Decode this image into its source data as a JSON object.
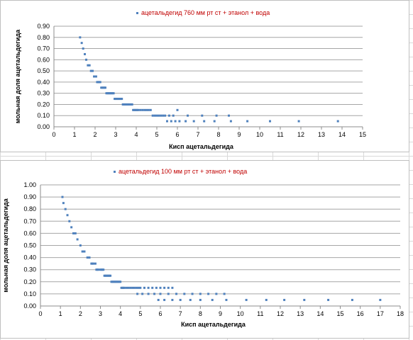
{
  "chart_data": [
    {
      "type": "scatter",
      "legend": "ацетальдегид 760 мм рт ст + этанол + вода",
      "legend_position": "top",
      "xlabel": "Кисп ацетальдегида",
      "ylabel": "мольная  доля ацетальдегида",
      "xlim": [
        0,
        15
      ],
      "ylim": [
        0,
        0.9
      ],
      "x_ticks": [
        "0",
        "1",
        "2",
        "3",
        "4",
        "5",
        "6",
        "7",
        "8",
        "9",
        "10",
        "11",
        "12",
        "13",
        "14",
        "15"
      ],
      "y_ticks": [
        "0.00",
        "0.10",
        "0.20",
        "0.30",
        "0.40",
        "0.50",
        "0.60",
        "0.70",
        "0.80",
        "0.90"
      ],
      "grid": "horizontal",
      "marker_color": "#4f81bd",
      "series": [
        {
          "x": [
            1.27,
            1.35,
            1.42,
            1.5,
            1.57,
            1.65,
            1.73,
            1.8,
            1.88,
            1.95,
            2.0,
            2.05,
            2.1,
            2.15,
            2.2,
            2.25,
            2.3,
            2.35,
            2.4,
            2.45,
            2.5,
            2.55,
            2.6,
            2.65,
            2.7,
            2.75,
            2.8,
            2.85,
            2.9,
            2.95,
            3.0,
            3.05,
            3.1,
            3.15,
            3.2,
            3.25,
            3.3,
            3.35,
            3.4,
            3.45,
            3.5,
            3.55,
            3.6,
            3.65,
            3.7,
            3.75,
            3.8,
            3.85,
            3.9,
            3.95,
            4.0,
            4.05,
            4.1,
            4.2,
            4.3,
            4.4,
            4.5,
            4.6,
            4.7,
            4.8,
            4.9,
            5.0,
            5.1,
            5.2,
            5.3,
            5.4,
            5.6,
            5.8,
            6.0,
            6.5,
            7.2,
            7.9,
            8.5,
            5.5,
            5.7,
            5.9,
            6.1,
            6.4,
            6.8,
            7.3,
            7.8,
            8.6,
            9.4,
            10.5,
            11.9,
            13.8
          ],
          "y": [
            0.8,
            0.75,
            0.7,
            0.65,
            0.6,
            0.55,
            0.55,
            0.5,
            0.5,
            0.45,
            0.45,
            0.45,
            0.4,
            0.4,
            0.4,
            0.4,
            0.35,
            0.35,
            0.35,
            0.35,
            0.35,
            0.3,
            0.3,
            0.3,
            0.3,
            0.3,
            0.3,
            0.3,
            0.3,
            0.25,
            0.25,
            0.25,
            0.25,
            0.25,
            0.25,
            0.25,
            0.25,
            0.2,
            0.2,
            0.2,
            0.2,
            0.2,
            0.2,
            0.2,
            0.2,
            0.2,
            0.2,
            0.15,
            0.15,
            0.15,
            0.15,
            0.15,
            0.15,
            0.15,
            0.15,
            0.15,
            0.15,
            0.15,
            0.15,
            0.1,
            0.1,
            0.1,
            0.1,
            0.1,
            0.1,
            0.1,
            0.1,
            0.1,
            0.15,
            0.1,
            0.1,
            0.1,
            0.1,
            0.05,
            0.05,
            0.05,
            0.05,
            0.05,
            0.05,
            0.05,
            0.05,
            0.05,
            0.05,
            0.05,
            0.05,
            0.05
          ]
        }
      ]
    },
    {
      "type": "scatter",
      "legend": "ацетальдегид 100 мм рт ст + этанол + вода",
      "legend_position": "top",
      "xlabel": "Кисп ацетальдегида",
      "ylabel": "мольная  доля ацетальдегида",
      "xlim": [
        0,
        18
      ],
      "ylim": [
        0,
        1.0
      ],
      "x_ticks": [
        "0",
        "1",
        "2",
        "3",
        "4",
        "5",
        "6",
        "7",
        "8",
        "9",
        "10",
        "11",
        "12",
        "13",
        "14",
        "15",
        "16",
        "17",
        "18"
      ],
      "y_ticks": [
        "0.00",
        "0.10",
        "0.20",
        "0.30",
        "0.40",
        "0.50",
        "0.60",
        "0.70",
        "0.80",
        "0.90",
        "1.00"
      ],
      "grid": "horizontal",
      "marker_color": "#4f81bd",
      "series": [
        {
          "x": [
            1.1,
            1.15,
            1.25,
            1.35,
            1.45,
            1.55,
            1.65,
            1.75,
            1.85,
            2.0,
            2.1,
            2.2,
            2.35,
            2.45,
            2.55,
            2.6,
            2.65,
            2.75,
            2.8,
            2.85,
            2.9,
            3.0,
            3.05,
            3.1,
            3.15,
            3.2,
            3.25,
            3.3,
            3.35,
            3.4,
            3.45,
            3.5,
            3.55,
            3.6,
            3.65,
            3.7,
            3.75,
            3.8,
            3.85,
            3.9,
            3.95,
            4.0,
            4.05,
            4.1,
            4.15,
            4.2,
            4.3,
            4.4,
            4.5,
            4.6,
            4.7,
            4.8,
            4.9,
            5.0,
            5.2,
            5.4,
            5.6,
            5.8,
            6.0,
            6.2,
            6.4,
            6.6,
            4.85,
            5.1,
            5.4,
            5.7,
            6.0,
            6.4,
            6.8,
            7.2,
            7.6,
            8.0,
            8.4,
            8.8,
            9.2,
            5.9,
            6.2,
            6.6,
            7.0,
            7.5,
            8.0,
            8.6,
            9.3,
            10.3,
            11.3,
            12.2,
            13.2,
            14.4,
            15.6,
            17.0
          ],
          "y": [
            0.9,
            0.85,
            0.8,
            0.75,
            0.7,
            0.65,
            0.6,
            0.6,
            0.55,
            0.5,
            0.45,
            0.45,
            0.4,
            0.4,
            0.35,
            0.35,
            0.35,
            0.35,
            0.3,
            0.3,
            0.3,
            0.3,
            0.3,
            0.3,
            0.3,
            0.25,
            0.25,
            0.25,
            0.25,
            0.25,
            0.25,
            0.25,
            0.2,
            0.2,
            0.2,
            0.2,
            0.2,
            0.2,
            0.2,
            0.2,
            0.2,
            0.2,
            0.15,
            0.15,
            0.15,
            0.15,
            0.15,
            0.15,
            0.15,
            0.15,
            0.15,
            0.15,
            0.15,
            0.15,
            0.15,
            0.15,
            0.15,
            0.15,
            0.15,
            0.15,
            0.15,
            0.15,
            0.1,
            0.1,
            0.1,
            0.1,
            0.1,
            0.1,
            0.1,
            0.1,
            0.1,
            0.1,
            0.1,
            0.1,
            0.1,
            0.05,
            0.05,
            0.05,
            0.05,
            0.05,
            0.05,
            0.05,
            0.05,
            0.05,
            0.05,
            0.05,
            0.05,
            0.05,
            0.05,
            0.05
          ]
        }
      ]
    }
  ]
}
